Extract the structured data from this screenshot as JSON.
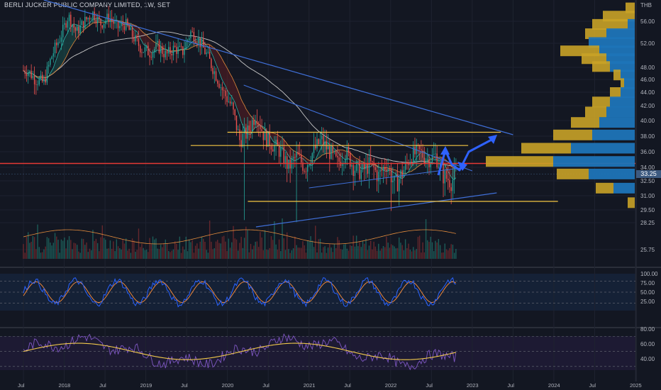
{
  "header": {
    "title": "BERLI JUCKER PUBLIC COMPANY LIMITED, 1W, SET",
    "currency": "THB"
  },
  "current_price_label": "33.25",
  "colors": {
    "background": "#131722",
    "up": "#26a69a",
    "down": "#ef5350",
    "trendline": "#3f6fd8",
    "support": "#f5c542",
    "resistance_red": "#e53935",
    "ma_white": "#c8c8c8",
    "ma_orange": "#e08a3c",
    "stoch_k": "#2962ff",
    "stoch_d": "#ff8f3a",
    "rsi": "#7e57c2",
    "rsi_ma": "#f2c94c",
    "vp_up": "#1e74b8",
    "vp_down": "#c9a227"
  },
  "chart_data": [
    {
      "type": "candlestick",
      "ylim": [
        25.75,
        58.5
      ],
      "price_axis": [
        "56.00",
        "52.00",
        "48.00",
        "46.00",
        "44.00",
        "42.00",
        "40.00",
        "38.00",
        "36.00",
        "34.00",
        "32.50",
        "31.00",
        "29.50",
        "28.25",
        "25.75"
      ],
      "time_axis": [
        "Jul",
        "2018",
        "Jul",
        "2019",
        "Jul",
        "2020",
        "Jul",
        "2021",
        "Jul",
        "2022",
        "Jul",
        "2023",
        "Jul",
        "2024",
        "Jul",
        "2025"
      ],
      "path": [
        [
          2017.55,
          47.5
        ],
        [
          2017.65,
          46.0
        ],
        [
          2017.75,
          45.5
        ],
        [
          2017.85,
          50.0
        ],
        [
          2017.95,
          53.0
        ],
        [
          2018.05,
          57.0
        ],
        [
          2018.15,
          54.0
        ],
        [
          2018.25,
          56.0
        ],
        [
          2018.35,
          57.5
        ],
        [
          2018.45,
          55.5
        ],
        [
          2018.55,
          56.8
        ],
        [
          2018.65,
          54.8
        ],
        [
          2018.75,
          55.5
        ],
        [
          2018.85,
          53.0
        ],
        [
          2018.95,
          51.0
        ],
        [
          2019.05,
          50.5
        ],
        [
          2019.15,
          51.5
        ],
        [
          2019.25,
          50.0
        ],
        [
          2019.35,
          51.2
        ],
        [
          2019.45,
          50.5
        ],
        [
          2019.55,
          54.0
        ],
        [
          2019.65,
          52.5
        ],
        [
          2019.75,
          50.0
        ],
        [
          2019.85,
          47.0
        ],
        [
          2019.95,
          44.0
        ],
        [
          2020.05,
          42.0
        ],
        [
          2020.15,
          37.5
        ],
        [
          2020.25,
          38.5
        ],
        [
          2020.35,
          41.0
        ],
        [
          2020.45,
          38.0
        ],
        [
          2020.55,
          37.0
        ],
        [
          2020.65,
          36.0
        ],
        [
          2020.75,
          34.0
        ],
        [
          2020.85,
          35.5
        ],
        [
          2020.95,
          34.0
        ],
        [
          2021.05,
          36.0
        ],
        [
          2021.15,
          37.5
        ],
        [
          2021.25,
          36.0
        ],
        [
          2021.35,
          34.5
        ],
        [
          2021.45,
          36.0
        ],
        [
          2021.55,
          34.0
        ],
        [
          2021.65,
          33.5
        ],
        [
          2021.75,
          34.5
        ],
        [
          2021.85,
          33.0
        ],
        [
          2021.95,
          34.5
        ],
        [
          2022.05,
          32.0
        ],
        [
          2022.15,
          33.5
        ],
        [
          2022.25,
          35.5
        ],
        [
          2022.35,
          36.0
        ],
        [
          2022.45,
          35.0
        ],
        [
          2022.55,
          35.5
        ],
        [
          2022.65,
          33.0
        ],
        [
          2022.75,
          32.5
        ],
        [
          2022.8,
          33.25
        ]
      ],
      "volume_max": 100
    },
    {
      "type": "line",
      "name": "stochastic",
      "ylim": [
        0,
        100
      ],
      "y_ticks": [
        "100.00",
        "75.00",
        "50.00",
        "25.00"
      ],
      "levels": [
        80,
        50,
        20
      ]
    },
    {
      "type": "line",
      "name": "rsi",
      "ylim": [
        20,
        85
      ],
      "y_ticks": [
        "80.00",
        "60.00",
        "40.00"
      ],
      "levels": [
        70,
        50,
        30
      ]
    }
  ],
  "annotations": {
    "support_levels": [
      38.5,
      36.8,
      30.4
    ],
    "resistance_line": 34.5
  }
}
